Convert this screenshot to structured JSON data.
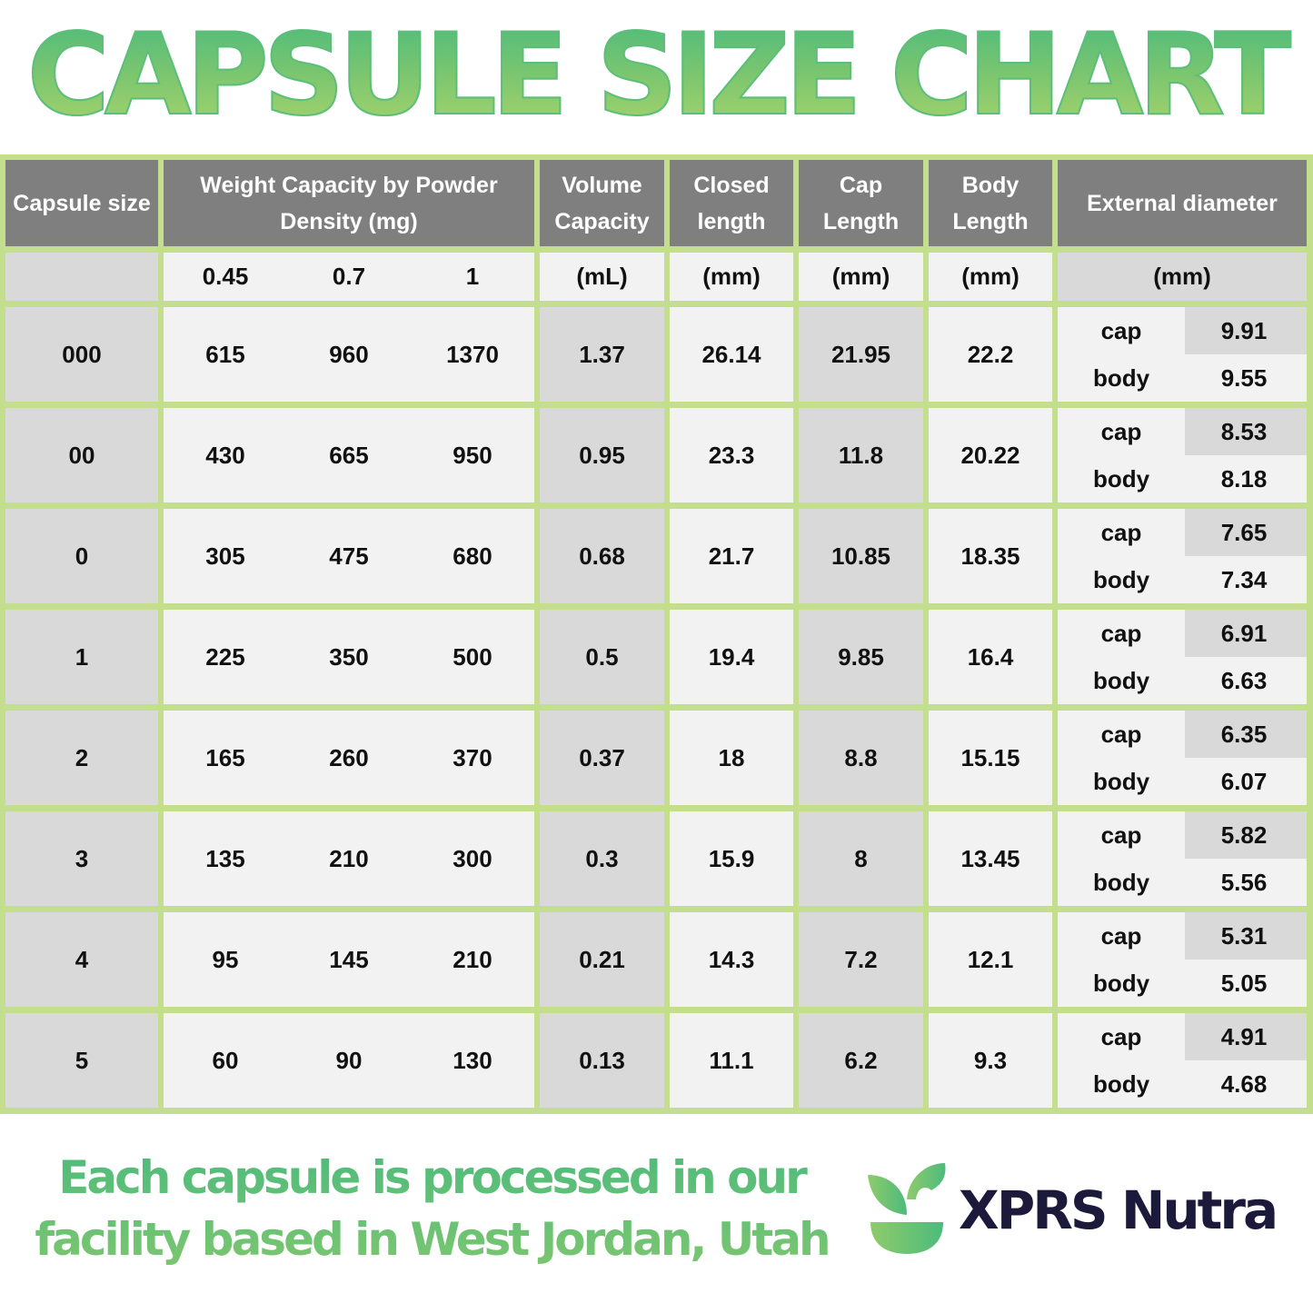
{
  "title": "CAPSULE SIZE CHART",
  "chart_data": {
    "type": "table",
    "headers": [
      "Capsule size",
      "Weight Capacity by Powder Density (mg)",
      "Volume Capacity",
      "Closed length",
      "Cap Length",
      "Body Length",
      "External diameter"
    ],
    "subheaders": [
      "",
      "0.45",
      "0.7",
      "1",
      "(mL)",
      "(mm)",
      "(mm)",
      "(mm)",
      "(mm)"
    ],
    "sub_labels": [
      "cap",
      "body"
    ],
    "rows": [
      {
        "size": "000",
        "w": [
          "615",
          "960",
          "1370"
        ],
        "vol": "1.37",
        "closed": "26.14",
        "cap": "21.95",
        "body": "22.2",
        "ext_cap": "9.91",
        "ext_body": "9.55"
      },
      {
        "size": "00",
        "w": [
          "430",
          "665",
          "950"
        ],
        "vol": "0.95",
        "closed": "23.3",
        "cap": "11.8",
        "body": "20.22",
        "ext_cap": "8.53",
        "ext_body": "8.18"
      },
      {
        "size": "0",
        "w": [
          "305",
          "475",
          "680"
        ],
        "vol": "0.68",
        "closed": "21.7",
        "cap": "10.85",
        "body": "18.35",
        "ext_cap": "7.65",
        "ext_body": "7.34"
      },
      {
        "size": "1",
        "w": [
          "225",
          "350",
          "500"
        ],
        "vol": "0.5",
        "closed": "19.4",
        "cap": "9.85",
        "body": "16.4",
        "ext_cap": "6.91",
        "ext_body": "6.63"
      },
      {
        "size": "2",
        "w": [
          "165",
          "260",
          "370"
        ],
        "vol": "0.37",
        "closed": "18",
        "cap": "8.8",
        "body": "15.15",
        "ext_cap": "6.35",
        "ext_body": "6.07"
      },
      {
        "size": "3",
        "w": [
          "135",
          "210",
          "300"
        ],
        "vol": "0.3",
        "closed": "15.9",
        "cap": "8",
        "body": "13.45",
        "ext_cap": "5.82",
        "ext_body": "5.56"
      },
      {
        "size": "4",
        "w": [
          "95",
          "145",
          "210"
        ],
        "vol": "0.21",
        "closed": "14.3",
        "cap": "7.2",
        "body": "12.1",
        "ext_cap": "5.31",
        "ext_body": "5.05"
      },
      {
        "size": "5",
        "w": [
          "60",
          "90",
          "130"
        ],
        "vol": "0.13",
        "closed": "11.1",
        "cap": "6.2",
        "body": "9.3",
        "ext_cap": "4.91",
        "ext_body": "4.68"
      }
    ]
  },
  "footer": {
    "line1": "Each capsule is processed in our",
    "line2": "facility based in West Jordan, Utah"
  },
  "brand": {
    "name": "XPRS Nutra",
    "icon": "leaf-bowl-icon"
  },
  "colors": {
    "border": "#c3df8e",
    "header": "#7f7f7f",
    "dark_cell": "#d9d9d9",
    "light_cell": "#f2f2f2",
    "title_green": "#5cbf79",
    "brand_navy": "#1c1a3a"
  }
}
